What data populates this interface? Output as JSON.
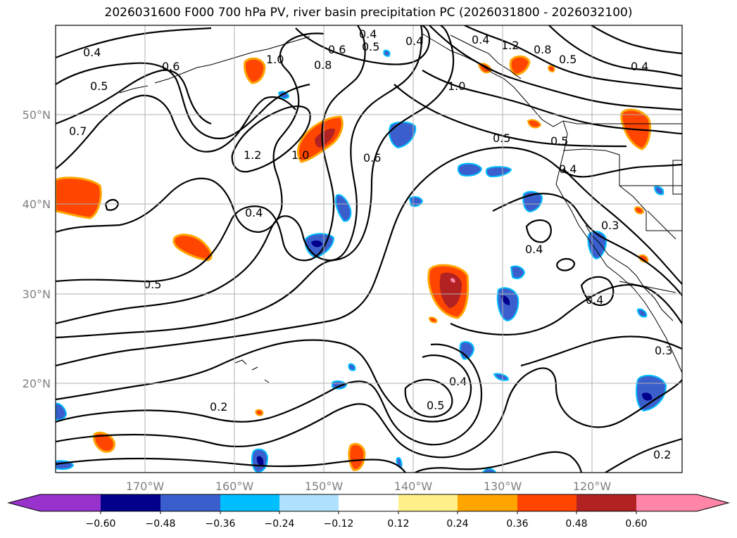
{
  "title": "2026031600 F000 700 hPa PV, river basin precipitation PC (2026031800 - 2026032100)",
  "lon_labels": [
    "170°W",
    "160°W",
    "150°W",
    "140°W",
    "130°W",
    "120°W"
  ],
  "lat_labels": [
    "50°N",
    "40°N",
    "30°N",
    "20°N"
  ],
  "contour_labels": [
    "0.4",
    "0.5",
    "0.7",
    "0.6",
    "1.0",
    "1.2",
    "1.0",
    "0.4",
    "0.5",
    "0.6",
    "0.4",
    "0.8",
    "0.5",
    "0.4",
    "0.4",
    "1.2",
    "0.8",
    "0.5",
    "0.4",
    "1.0",
    "0.5",
    "0.6",
    "0.5",
    "0.4",
    "0.3",
    "0.4",
    "0.4",
    "0.3",
    "0.4",
    "0.5",
    "0.2",
    "0.2"
  ],
  "colorbar": {
    "ticks": [
      "−0.60",
      "−0.48",
      "−0.36",
      "−0.24",
      "−0.12",
      "0.12",
      "0.24",
      "0.36",
      "0.48",
      "0.60"
    ],
    "colors": [
      "#9932cc",
      "#00008b",
      "#3a5fcd",
      "#00bfff",
      "#b0e2ff",
      "#ffffff",
      "#fff08a",
      "#ffa500",
      "#ff4500",
      "#b22222",
      "#ff86a8"
    ]
  },
  "colors": {
    "pv_contour": "#000000",
    "gridline": "#b0b0b0",
    "coast": "#000000"
  }
}
